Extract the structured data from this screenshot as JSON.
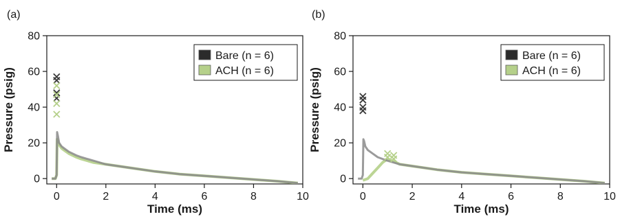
{
  "chart_data": [
    {
      "type": "line",
      "panel_label": "(a)",
      "xlabel": "Time (ms)",
      "ylabel": "Pressure (psig)",
      "xlim": [
        -0.4,
        10
      ],
      "ylim": [
        -3,
        80
      ],
      "xticks": [
        0,
        2,
        4,
        6,
        8,
        10
      ],
      "yticks": [
        0,
        20,
        40,
        60,
        80
      ],
      "legend_position": "top-right",
      "series": [
        {
          "name": "Bare (n = 6)",
          "color": "#3a3a3a",
          "x": [
            -0.2,
            -0.05,
            0.0,
            0.02,
            0.05,
            0.1,
            0.2,
            0.3,
            0.5,
            0.8,
            1.0,
            1.5,
            2.0,
            2.5,
            3.0,
            4.0,
            5.0,
            6.0,
            7.0,
            8.0,
            9.0,
            9.8
          ],
          "y": [
            0,
            0,
            2,
            26,
            24,
            20,
            18,
            17,
            15,
            13,
            12,
            10,
            8,
            7,
            6,
            4,
            2.5,
            1.5,
            0.5,
            -0.5,
            -1.5,
            -2.5
          ],
          "peaks": [
            57,
            55,
            48,
            45
          ]
        },
        {
          "name": "ACH (n = 6)",
          "color": "#b5d08a",
          "x": [
            -0.2,
            -0.05,
            0.0,
            0.02,
            0.05,
            0.1,
            0.2,
            0.3,
            0.5,
            0.8,
            1.0,
            1.5,
            2.0,
            2.5,
            3.0,
            4.0,
            5.0,
            6.0,
            7.0,
            8.0,
            9.0,
            9.8
          ],
          "y": [
            0,
            0,
            2,
            22,
            21,
            19,
            17,
            16,
            14,
            12,
            11,
            9,
            8,
            7,
            6,
            4,
            2.5,
            1.5,
            0.5,
            -0.5,
            -1.5,
            -2.5
          ],
          "peaks": [
            52,
            47,
            42,
            36
          ]
        }
      ]
    },
    {
      "type": "line",
      "panel_label": "(b)",
      "xlabel": "Time (ms)",
      "ylabel": "Pressure (psig)",
      "xlim": [
        -0.4,
        10
      ],
      "ylim": [
        -3,
        80
      ],
      "xticks": [
        0,
        2,
        4,
        6,
        8,
        10
      ],
      "yticks": [
        0,
        20,
        40,
        60,
        80
      ],
      "legend_position": "top-right",
      "series": [
        {
          "name": "Bare (n = 6)",
          "color": "#3a3a3a",
          "x": [
            -0.2,
            -0.05,
            0.0,
            0.02,
            0.05,
            0.1,
            0.2,
            0.4,
            0.6,
            0.8,
            1.0,
            1.5,
            2.0,
            3.0,
            4.0,
            5.0,
            6.0,
            7.0,
            8.0,
            9.0,
            9.8
          ],
          "y": [
            0,
            0,
            2,
            22,
            21,
            18,
            16,
            14,
            12,
            11,
            10,
            8,
            7,
            5,
            3.5,
            2.5,
            1.5,
            0.5,
            -0.5,
            -1.5,
            -2.5
          ],
          "peaks": [
            46,
            44,
            40,
            38
          ]
        },
        {
          "name": "ACH (n = 6)",
          "color": "#b5d08a",
          "x": [
            0.0,
            0.2,
            0.4,
            0.6,
            0.8,
            1.0,
            1.2,
            1.5,
            2.0,
            3.0,
            4.0,
            5.0,
            6.0,
            7.0,
            8.0,
            9.0,
            9.8
          ],
          "y": [
            -1,
            0,
            3,
            6,
            9,
            11,
            10,
            8,
            7,
            5,
            3.5,
            2.5,
            1.5,
            0.5,
            -0.5,
            -1.5,
            -2.5
          ],
          "peaks": [
            14,
            13,
            12,
            11
          ]
        }
      ]
    }
  ]
}
